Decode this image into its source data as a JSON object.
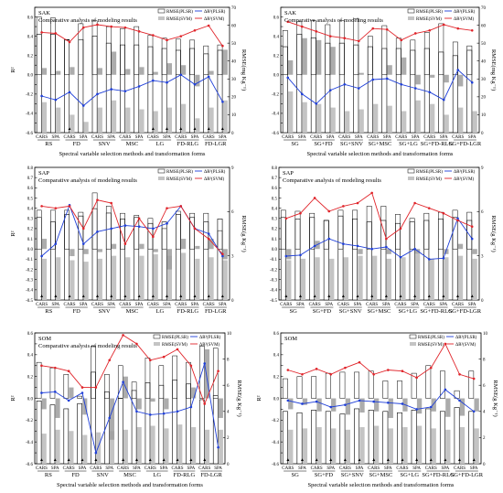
{
  "figure": {
    "colors": {
      "plsr_line": "#1f3fd8",
      "svm_line": "#e0242a",
      "svm_bar": "#c4c4c4",
      "plsr_bar": "#ffffff",
      "axis": "#000000"
    },
    "legend": {
      "rmse_plsr": "RMSE(PLSR)",
      "rmse_svm": "RMSE(SVM)",
      "ar_plsr": "ΔR²(PLSR)",
      "ar_svm": "ΔR²(SVM)"
    },
    "marker_glyph": "▲"
  },
  "chart_data": [
    {
      "type": "bar",
      "id": "sak-1",
      "panel_label": "SAK",
      "subtitle": "Comparative analysis of modeling results",
      "xlabel": "Spectral variable selection methods and transformation forms",
      "ylabel_left": "R²",
      "ylabel_right": "RMSE(mg Kg⁻¹)",
      "ylim_left": [
        -0.6,
        0.7
      ],
      "left_ticks": [
        -0.6,
        -0.5,
        -0.4,
        -0.3,
        -0.2,
        -0.1,
        0.0,
        0.1,
        0.2,
        0.3,
        0.4,
        0.5,
        0.6,
        0.7
      ],
      "left_ticks_show": [
        -0.6,
        -0.4,
        -0.2,
        0.0,
        0.2,
        0.4,
        0.6
      ],
      "ylim_right": [
        0,
        70
      ],
      "right_ticks": [
        0,
        10,
        20,
        30,
        40,
        50,
        60,
        70
      ],
      "categories": [
        "CARS",
        "SPA",
        "CARS",
        "SPA",
        "CARS",
        "SPA",
        "CARS",
        "SPA",
        "CARS",
        "SPA",
        "CARS",
        "SPA",
        "CARS",
        "SPA"
      ],
      "groups": [
        "RS",
        "FD",
        "SNV",
        "MSC",
        "LG",
        "FD-RLG",
        "FD-LGR"
      ],
      "rmse_plsr": [
        55,
        55,
        52,
        52,
        54,
        50,
        49,
        49,
        48,
        47,
        46,
        47,
        44,
        46
      ],
      "rmse_svm": [
        17,
        14,
        10,
        6,
        14,
        18,
        14,
        13,
        12,
        14,
        16,
        8,
        14,
        18
      ],
      "r2_plsr": [
        0.6,
        0.59,
        0.36,
        0.53,
        0.56,
        0.5,
        0.48,
        0.5,
        0.41,
        0.38,
        0.37,
        0.36,
        0.3,
        0.31
      ],
      "r2_svm": [
        0.07,
        0.04,
        0.08,
        0.0,
        0.07,
        0.24,
        0.06,
        0.08,
        0.03,
        0.12,
        0.1,
        -0.12,
        0.04,
        0.26
      ],
      "ar_plsr": [
        -0.22,
        -0.26,
        -0.18,
        -0.32,
        -0.2,
        -0.15,
        -0.17,
        -0.12,
        -0.06,
        -0.08,
        0.0,
        -0.1,
        -0.02,
        -0.28
      ],
      "ar_svm": [
        0.44,
        0.43,
        0.34,
        0.49,
        0.52,
        0.5,
        0.49,
        0.45,
        0.41,
        0.36,
        0.4,
        0.46,
        0.51,
        0.3
      ],
      "markers": [
        false,
        false,
        true,
        false,
        false,
        false,
        false,
        false,
        true,
        true,
        true,
        true,
        true,
        true
      ]
    },
    {
      "type": "bar",
      "id": "sak-2",
      "panel_label": "SAK",
      "subtitle": "Comparative analysis of modeling results",
      "xlabel": "Spectral variable selection methods and transformation forms",
      "ylabel_left": "",
      "ylabel_right": "RMSE(mg Kg⁻¹)",
      "ylim_left": [
        -0.6,
        0.7
      ],
      "left_ticks": [
        -0.6,
        -0.5,
        -0.4,
        -0.3,
        -0.2,
        -0.1,
        0.0,
        0.1,
        0.2,
        0.3,
        0.4,
        0.5,
        0.6,
        0.7
      ],
      "left_ticks_show": [
        -0.6,
        -0.4,
        -0.2,
        0.0,
        0.2,
        0.4,
        0.6
      ],
      "ylim_right": [
        0,
        70
      ],
      "right_ticks": [
        0,
        10,
        20,
        30,
        40,
        50,
        60,
        70
      ],
      "categories": [
        "CARS",
        "SPA",
        "CARS",
        "SPA",
        "CARS",
        "SPA",
        "CARS",
        "SPA",
        "CARS",
        "SPA",
        "CARS",
        "SPA",
        "CARS",
        "SPA"
      ],
      "groups": [
        "SG",
        "SG+FD",
        "SG+SNV",
        "SG+MSC",
        "SG+LG",
        "SG+FD-RLG",
        "SG+FD-LGR"
      ],
      "rmse_plsr": [
        48,
        55,
        53,
        50,
        50,
        49,
        48,
        47,
        47,
        46,
        47,
        45,
        43,
        46
      ],
      "rmse_svm": [
        23,
        17,
        16,
        14,
        12,
        13,
        16,
        15,
        12,
        18,
        16,
        10,
        14,
        12
      ],
      "r2_plsr": [
        0.46,
        0.55,
        0.56,
        0.52,
        0.56,
        0.58,
        0.4,
        0.51,
        0.38,
        0.36,
        0.44,
        0.53,
        0.34,
        0.3
      ],
      "r2_svm": [
        0.15,
        0.38,
        0.36,
        0.29,
        0.0,
        0.02,
        0.0,
        0.1,
        0.18,
        -0.1,
        -0.03,
        -0.08,
        -0.12,
        0.0
      ],
      "ar_plsr": [
        -0.03,
        -0.2,
        -0.3,
        -0.16,
        -0.1,
        -0.14,
        -0.05,
        -0.04,
        -0.1,
        -0.14,
        -0.18,
        -0.26,
        0.05,
        -0.08
      ],
      "ar_svm": [
        0.55,
        0.5,
        0.45,
        0.4,
        0.38,
        0.35,
        0.48,
        0.47,
        0.36,
        0.43,
        0.46,
        0.52,
        0.48,
        0.46
      ],
      "markers": [
        false,
        false,
        false,
        false,
        false,
        false,
        false,
        false,
        false,
        false,
        false,
        false,
        false,
        false
      ]
    },
    {
      "type": "bar",
      "id": "sap-1",
      "panel_label": "SAP",
      "subtitle": "Comparative analysis of modeling results",
      "xlabel": "",
      "ylabel_left": "R²",
      "ylabel_right": "RMSE(g Kg⁻¹)",
      "ylim_left": [
        -0.5,
        0.8
      ],
      "left_ticks": [
        -0.5,
        -0.4,
        -0.3,
        -0.2,
        -0.1,
        0.0,
        0.1,
        0.2,
        0.3,
        0.4,
        0.5,
        0.6,
        0.7,
        0.8
      ],
      "left_ticks_show": [
        -0.5,
        -0.4,
        -0.3,
        -0.2,
        -0.1,
        0.0,
        0.1,
        0.2,
        0.3,
        0.4,
        0.5,
        0.6,
        0.7,
        0.8
      ],
      "ylim_right": [
        0,
        9
      ],
      "right_ticks": [
        0,
        3,
        6,
        9
      ],
      "categories": [
        "CARS",
        "SPA",
        "CARS",
        "SPA",
        "CARS",
        "SPA",
        "CARS",
        "SPA",
        "CARS",
        "SPA",
        "CARS",
        "SPA",
        "CARS",
        "SPA"
      ],
      "groups": [
        "RS",
        "FD",
        "SNV",
        "MSC",
        "LG",
        "FD-RLG",
        "FD-LGR"
      ],
      "rmse_plsr": [
        5.6,
        5.3,
        5.8,
        5.7,
        6.2,
        5.9,
        5.5,
        5.6,
        5.2,
        5.3,
        5.8,
        5.6,
        5.3,
        5.5
      ],
      "rmse_svm": [
        2.8,
        2.9,
        2.7,
        2.6,
        2.8,
        3.0,
        2.9,
        3.0,
        3.1,
        3.0,
        3.2,
        2.8,
        2.9,
        2.7
      ],
      "r2_plsr": [
        0.38,
        0.38,
        0.38,
        0.36,
        0.55,
        0.42,
        0.35,
        0.33,
        0.3,
        0.2,
        0.37,
        0.35,
        0.35,
        0.18
      ],
      "r2_svm": [
        0.1,
        0.0,
        -0.07,
        -0.05,
        -0.03,
        0.05,
        0.0,
        0.05,
        -0.03,
        -0.2,
        0.1,
        0.03,
        0.1,
        -0.1
      ],
      "ar_plsr": [
        -0.07,
        0.05,
        0.43,
        0.05,
        0.17,
        0.2,
        0.23,
        0.22,
        0.2,
        0.25,
        0.42,
        0.2,
        0.15,
        -0.07
      ],
      "ar_svm": [
        0.42,
        0.4,
        0.42,
        0.2,
        0.48,
        0.45,
        0.05,
        0.3,
        0.12,
        0.4,
        0.42,
        0.2,
        0.1,
        -0.05
      ],
      "markers": [
        true,
        true,
        true,
        true,
        true,
        true,
        true,
        true,
        true,
        true,
        true,
        true,
        true,
        true
      ]
    },
    {
      "type": "bar",
      "id": "sap-2",
      "panel_label": "SAP",
      "subtitle": "Comparative analysis of modeling results",
      "xlabel": "",
      "ylabel_left": "",
      "ylabel_right": "RMSE(g Kg⁻¹)",
      "ylim_left": [
        -0.5,
        0.8
      ],
      "left_ticks": [
        -0.5,
        -0.4,
        -0.3,
        -0.2,
        -0.1,
        0.0,
        0.1,
        0.2,
        0.3,
        0.4,
        0.5,
        0.6,
        0.7,
        0.8
      ],
      "left_ticks_show": [
        -0.5,
        -0.4,
        -0.3,
        -0.2,
        -0.1,
        0.0,
        0.1,
        0.2,
        0.3,
        0.4,
        0.5,
        0.6,
        0.7,
        0.8
      ],
      "ylim_right": [
        0,
        9
      ],
      "right_ticks": [
        0,
        3,
        6,
        9
      ],
      "categories": [
        "CARS",
        "SPA",
        "CARS",
        "SPA",
        "CARS",
        "SPA",
        "CARS",
        "SPA",
        "CARS",
        "SPA",
        "CARS",
        "SPA",
        "CARS",
        "SPA"
      ],
      "groups": [
        "SG",
        "SG+FD",
        "SG+SNV",
        "SG+MSC",
        "SG+LG",
        "SG+FD-RLG",
        "SG+FD-LGR"
      ],
      "rmse_plsr": [
        5.6,
        5.5,
        5.6,
        5.4,
        5.7,
        5.5,
        5.3,
        5.4,
        5.2,
        5.3,
        5.4,
        5.5,
        5.6,
        5.4
      ],
      "rmse_svm": [
        2.7,
        2.8,
        2.9,
        2.8,
        2.9,
        3.0,
        3.0,
        2.8,
        2.9,
        3.1,
        2.8,
        2.9,
        3.0,
        2.8
      ],
      "r2_plsr": [
        0.38,
        0.37,
        0.35,
        0.28,
        0.38,
        0.38,
        0.42,
        0.42,
        0.34,
        0.3,
        0.35,
        0.36,
        0.38,
        0.36
      ],
      "r2_svm": [
        -0.1,
        0.0,
        0.08,
        0.0,
        0.0,
        -0.05,
        0.0,
        -0.05,
        0.0,
        -0.05,
        0.0,
        -0.05,
        0.05,
        -0.05
      ],
      "ar_plsr": [
        -0.07,
        -0.06,
        0.03,
        0.1,
        0.05,
        0.03,
        0.0,
        0.02,
        -0.08,
        0.0,
        -0.1,
        -0.09,
        0.3,
        0.1
      ],
      "ar_svm": [
        0.3,
        0.35,
        0.5,
        0.37,
        0.42,
        0.45,
        0.55,
        0.1,
        0.2,
        0.45,
        0.4,
        0.35,
        0.28,
        0.22
      ],
      "markers": [
        true,
        true,
        true,
        true,
        true,
        true,
        true,
        true,
        true,
        true,
        true,
        true,
        true,
        true
      ]
    },
    {
      "type": "bar",
      "id": "som-1",
      "panel_label": "SOM",
      "subtitle": "Comparative analysis of modeling results",
      "xlabel": "Spectral variable selection methods and transformation forms",
      "ylabel_left": "R²",
      "ylabel_right": "RMSE(g Kg⁻¹)",
      "ylim_left": [
        -0.6,
        0.6
      ],
      "left_ticks": [
        -0.6,
        -0.5,
        -0.4,
        -0.3,
        -0.2,
        -0.1,
        0.0,
        0.1,
        0.2,
        0.3,
        0.4,
        0.5,
        0.6
      ],
      "left_ticks_show": [
        -0.6,
        -0.4,
        -0.2,
        0.0,
        0.2,
        0.4,
        0.6
      ],
      "ylim_right": [
        0,
        10
      ],
      "right_ticks": [
        0,
        2,
        4,
        6,
        8,
        10
      ],
      "categories": [
        "CARS",
        "SPA",
        "CARS",
        "SPA",
        "CARS",
        "SPA",
        "CARS",
        "SPA",
        "CARS",
        "SPA",
        "CARS",
        "SPA",
        "CARS",
        "SPA"
      ],
      "groups": [
        "RS",
        "FD",
        "SNV",
        "MSC",
        "LG",
        "FD-RLG",
        "FD-LGR"
      ],
      "rmse_plsr": [
        4.8,
        4.5,
        4.2,
        4.6,
        7.0,
        5.5,
        5.0,
        5.6,
        6.2,
        6.0,
        6.4,
        6.1,
        4.9,
        5.2
      ],
      "rmse_svm": [
        2.3,
        2.6,
        2.5,
        2.2,
        2.4,
        2.5,
        2.6,
        2.8,
        2.9,
        2.7,
        3.0,
        2.8,
        2.6,
        2.6
      ],
      "r2_plsr": [
        0.33,
        0.28,
        0.22,
        0.02,
        0.48,
        0.22,
        0.3,
        0.15,
        0.37,
        0.3,
        0.39,
        0.33,
        0.48,
        0.46
      ],
      "r2_svm": [
        -0.1,
        -0.18,
        0.1,
        -0.15,
        0.0,
        -0.38,
        0.2,
        -0.1,
        -0.03,
        -0.1,
        0.0,
        0.1,
        0.45,
        -0.18
      ],
      "ar_plsr": [
        0.05,
        0.06,
        -0.02,
        0.05,
        -0.5,
        -0.18,
        0.15,
        -0.12,
        -0.15,
        -0.14,
        -0.12,
        -0.08,
        0.32,
        -0.45
      ],
      "ar_svm": [
        0.3,
        0.28,
        0.25,
        0.1,
        0.1,
        0.35,
        0.58,
        0.5,
        0.35,
        0.38,
        0.45,
        0.3,
        -0.05,
        0.25
      ],
      "markers": [
        true,
        true,
        true,
        true,
        true,
        false,
        true,
        true,
        true,
        true,
        true,
        true,
        true,
        false
      ]
    },
    {
      "type": "bar",
      "id": "som-2",
      "panel_label": "SOM",
      "subtitle": "",
      "xlabel": "Spectral variable selection methods and transformation forms",
      "ylabel_left": "R²",
      "ylabel_right": "RMSE(g Kg⁻¹)",
      "ylim_left": [
        -0.6,
        0.6
      ],
      "left_ticks": [
        -0.6,
        -0.5,
        -0.4,
        -0.3,
        -0.2,
        -0.1,
        0.0,
        0.1,
        0.2,
        0.3,
        0.4,
        0.5,
        0.6
      ],
      "left_ticks_show": [
        -0.6,
        -0.4,
        -0.2,
        0.0,
        0.2,
        0.4,
        0.6
      ],
      "ylim_right": [
        0,
        10
      ],
      "right_ticks": [
        0,
        2,
        4,
        6,
        8,
        10
      ],
      "categories": [
        "CARS",
        "SPA",
        "CARS",
        "SPA",
        "CARS",
        "SPA",
        "CARS",
        "SPA",
        "CARS",
        "SPA",
        "CARS",
        "SPA",
        "CARS",
        "SPA"
      ],
      "groups": [
        "SG",
        "SG+FD",
        "SG+SNV",
        "SG+MSC",
        "SG+LG",
        "SG+FD-RLG",
        "SG+FD-LGR"
      ],
      "rmse_plsr": [
        4.0,
        3.9,
        4.1,
        4.0,
        3.8,
        4.2,
        4.1,
        4.0,
        3.9,
        4.1,
        4.2,
        4.0,
        4.3,
        4.0
      ],
      "rmse_svm": [
        2.6,
        2.7,
        2.8,
        2.7,
        2.6,
        2.8,
        2.9,
        2.7,
        2.8,
        2.9,
        2.7,
        2.6,
        2.8,
        2.7
      ],
      "r2_plsr": [
        0.18,
        0.2,
        0.2,
        0.23,
        0.24,
        0.24,
        0.25,
        0.16,
        0.16,
        0.23,
        0.3,
        0.25,
        0.07,
        0.25
      ],
      "r2_svm": [
        -0.1,
        -0.06,
        -0.12,
        -0.12,
        -0.15,
        -0.13,
        -0.12,
        -0.18,
        -0.12,
        -0.14,
        -0.12,
        -0.17,
        -0.16,
        -0.12
      ],
      "ar_plsr": [
        -0.02,
        -0.05,
        -0.03,
        -0.08,
        -0.06,
        -0.02,
        -0.03,
        -0.04,
        -0.05,
        -0.1,
        -0.08,
        0.08,
        -0.02,
        -0.12
      ],
      "ar_svm": [
        0.26,
        0.22,
        0.27,
        0.22,
        0.28,
        0.33,
        0.22,
        0.26,
        0.25,
        0.19,
        0.28,
        0.5,
        0.22,
        0.18
      ],
      "markers": [
        true,
        true,
        true,
        true,
        true,
        true,
        true,
        true,
        true,
        true,
        true,
        true,
        true,
        true
      ]
    }
  ]
}
